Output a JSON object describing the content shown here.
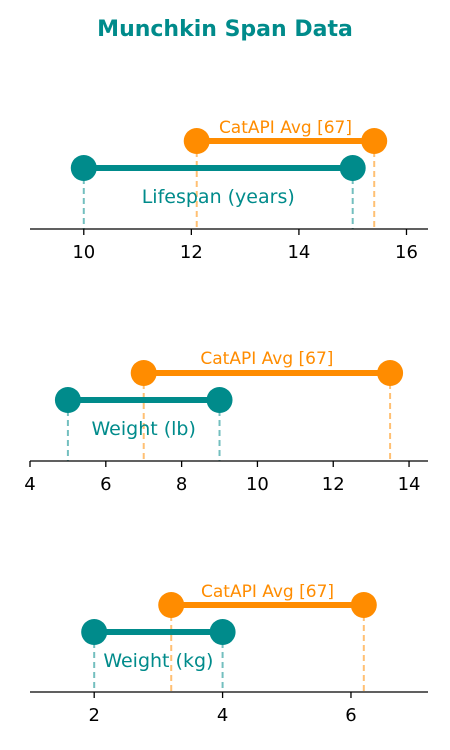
{
  "figure_title": "Munchkin Span Data",
  "colors": {
    "munchkin": "#008b8b",
    "catapi": "#ff8c00",
    "axis": "#000000"
  },
  "chart_data": [
    {
      "type": "dumbbell",
      "label": "Lifespan (years)",
      "munchkin_range": [
        10,
        15
      ],
      "catapi_range": [
        12.1,
        15.4
      ],
      "catapi_label": "CatAPI Avg [67]",
      "xlim": [
        9,
        16.4
      ],
      "xticks": [
        10,
        12,
        14,
        16
      ],
      "xtick_labels": [
        "10",
        "12",
        "14",
        "16"
      ]
    },
    {
      "type": "dumbbell",
      "label": "Weight (lb)",
      "munchkin_range": [
        5,
        9
      ],
      "catapi_range": [
        7,
        13.5
      ],
      "catapi_label": "CatAPI Avg [67]",
      "xlim": [
        4,
        14.5
      ],
      "xticks": [
        4,
        6,
        8,
        10,
        12,
        14
      ],
      "xtick_labels": [
        "4",
        "6",
        "8",
        "10",
        "12",
        "14"
      ]
    },
    {
      "type": "dumbbell",
      "label": "Weight (kg)",
      "munchkin_range": [
        2,
        4
      ],
      "catapi_range": [
        3.2,
        6.2
      ],
      "catapi_label": "CatAPI Avg [67]",
      "xlim": [
        1,
        7.2
      ],
      "xticks": [
        2,
        4,
        6
      ],
      "xtick_labels": [
        "2",
        "4",
        "6"
      ]
    }
  ]
}
